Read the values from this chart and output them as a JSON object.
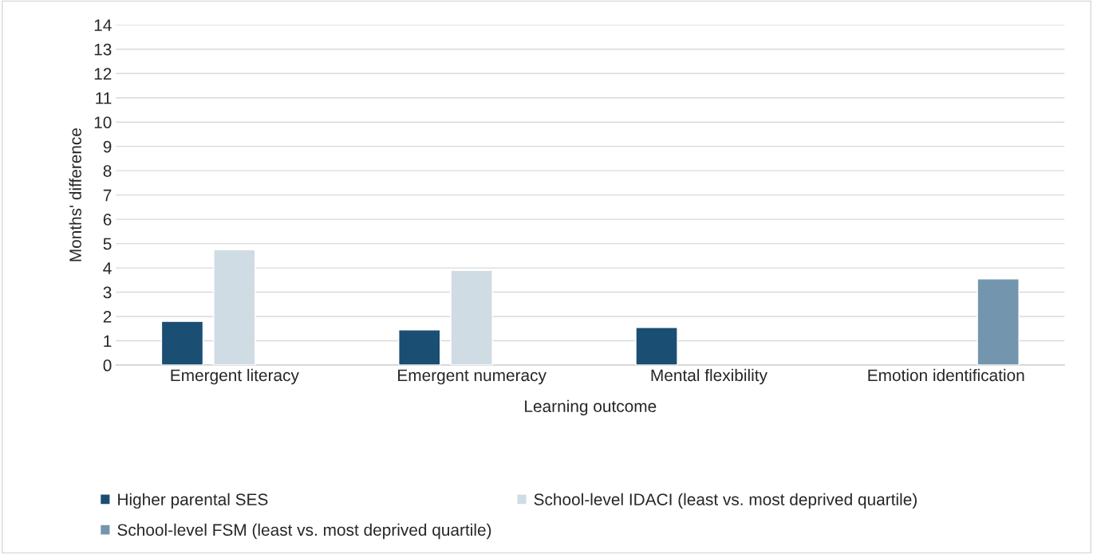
{
  "chart_data": {
    "type": "bar",
    "xlabel": "Learning outcome",
    "ylabel": "Months' difference",
    "categories": [
      "Emergent literacy",
      "Emergent numeracy",
      "Mental flexibility",
      "Emotion identification"
    ],
    "series": [
      {
        "name": "Higher parental SES",
        "color": "#1a4e72",
        "values": [
          1.8,
          1.45,
          1.55,
          null
        ]
      },
      {
        "name": "School-level IDACI (least vs. most deprived quartile)",
        "color": "#d0dce4",
        "values": [
          4.75,
          3.9,
          null,
          null
        ]
      },
      {
        "name": "School-level FSM (least vs. most deprived quartile)",
        "color": "#7396ae",
        "values": [
          null,
          null,
          null,
          3.55
        ]
      }
    ],
    "ylim": [
      0,
      14
    ],
    "yticks": [
      0,
      1,
      2,
      3,
      4,
      5,
      6,
      7,
      8,
      9,
      10,
      11,
      12,
      13,
      14
    ],
    "grid": "y",
    "legend": "bottom"
  }
}
